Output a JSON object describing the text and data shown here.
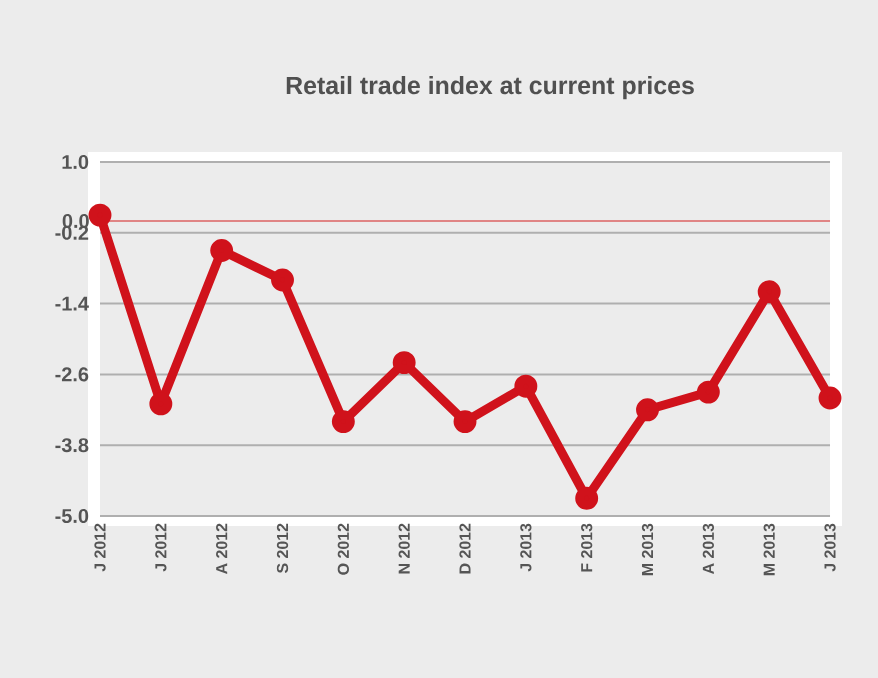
{
  "chart_data": {
    "type": "line",
    "title": "Retail trade index at current prices",
    "categories": [
      "J 2012",
      "J 2012",
      "A 2012",
      "S 2012",
      "O 2012",
      "N 2012",
      "D 2012",
      "J 2013",
      "F 2013",
      "M 2013",
      "A 2013",
      "M 2013",
      "J 2013"
    ],
    "series": [
      {
        "color": "#d0121b",
        "values": [
          0.1,
          -3.1,
          -0.5,
          -1.0,
          -3.4,
          -2.4,
          -3.4,
          -2.8,
          -4.7,
          -3.2,
          -2.9,
          -1.2,
          -3.0
        ]
      }
    ],
    "ylim": [
      -5.0,
      1.0
    ],
    "yticks": [
      {
        "value": 1.0,
        "label": "1.0"
      },
      {
        "value": -0.2,
        "label": "-0.2"
      },
      {
        "value": -1.4,
        "label": "-1.4"
      },
      {
        "value": -2.6,
        "label": "-2.6"
      },
      {
        "value": -3.8,
        "label": "-3.8"
      },
      {
        "value": -5.0,
        "label": "-5.0"
      }
    ],
    "ref_lines": [
      {
        "axis": "y",
        "value": 0.0,
        "label": "0.0",
        "color": "#e08585"
      }
    ],
    "grid": "y",
    "marker": "circle",
    "line_style": "solid"
  }
}
